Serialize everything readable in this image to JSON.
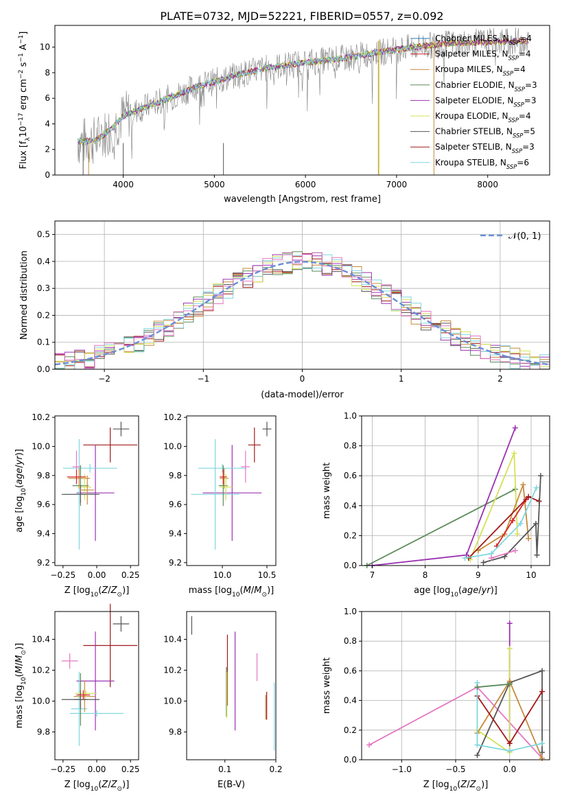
{
  "figure_title": "PLATE=0732, MJD=52221, FIBERID=0557, z=0.092",
  "colors": {
    "Chabrier MILES": "#1f77b4",
    "Salpeter MILES": "#d62728",
    "Kroupa MILES": "#c58a3a",
    "Chabrier ELODIE": "#5a8a5a",
    "Salpeter ELODIE": "#9b30b0",
    "Kroupa ELODIE": "#d4e157",
    "Chabrier STELIB": "#555555",
    "Salpeter STELIB": "#a01818",
    "Kroupa STELIB": "#7fd6e0",
    "Pink": "#e377c2",
    "Normal": "#6a8fd8"
  },
  "chart_data": [
    {
      "id": "spectrum",
      "type": "line",
      "xlabel": "wavelength [Angstrom, rest frame]",
      "ylabel": "Flux [f_λ10^-17 erg cm^-2 s^-1 A^-1]",
      "xlim": [
        3250,
        8680
      ],
      "ylim": [
        0,
        11.7
      ],
      "xticks": [
        4000,
        5000,
        6000,
        7000,
        8000
      ],
      "yticks": [
        0,
        2,
        4,
        6,
        8,
        10
      ],
      "grid": false,
      "legend_position": "right",
      "legend": [
        {
          "name": "Chabrier MILES",
          "nssp": "4"
        },
        {
          "name": "Salpeter MILES",
          "nssp": "4"
        },
        {
          "name": "Kroupa MILES",
          "nssp": "4"
        },
        {
          "name": "Chabrier ELODIE",
          "nssp": "3"
        },
        {
          "name": "Salpeter ELODIE",
          "nssp": "3"
        },
        {
          "name": "Kroupa ELODIE",
          "nssp": "4"
        },
        {
          "name": "Chabrier STELIB",
          "nssp": "5"
        },
        {
          "name": "Salpeter STELIB",
          "nssp": "3"
        },
        {
          "name": "Kroupa STELIB",
          "nssp": "6"
        }
      ],
      "continuum": [
        [
          3500,
          2.6
        ],
        [
          3700,
          2.7
        ],
        [
          3900,
          3.8
        ],
        [
          4000,
          4.6
        ],
        [
          4200,
          5.2
        ],
        [
          4500,
          6.0
        ],
        [
          4800,
          6.9
        ],
        [
          5000,
          7.3
        ],
        [
          5300,
          7.9
        ],
        [
          5600,
          8.4
        ],
        [
          6000,
          8.8
        ],
        [
          6400,
          9.1
        ],
        [
          6800,
          9.6
        ],
        [
          7200,
          10.0
        ],
        [
          7600,
          10.3
        ],
        [
          8000,
          10.4
        ],
        [
          8450,
          10.5
        ]
      ],
      "data_color": "#808080"
    },
    {
      "id": "residuals",
      "type": "line",
      "xlabel": "(data-model)/error",
      "ylabel": "Normed distribution",
      "xlim": [
        -2.5,
        2.5
      ],
      "ylim": [
        0,
        0.55
      ],
      "xticks": [
        -2,
        -1,
        0,
        1,
        2
      ],
      "yticks": [
        0.0,
        0.1,
        0.2,
        0.3,
        0.4,
        0.5
      ],
      "grid": true,
      "legend_position": "top-right",
      "legend_label": "𝒩(0, 1)",
      "bin_width": 0.1
    },
    {
      "id": "age-z",
      "type": "scatter",
      "xlabel": "Z [log10(Z/Z⊙)]",
      "ylabel": "age  [log10(age/yr)]",
      "xlim": [
        -0.31,
        0.31
      ],
      "ylim": [
        9.18,
        10.21
      ],
      "xticks": [
        -0.25,
        0.0,
        0.25
      ],
      "xtick_labels": [
        "−0.25",
        "0.00",
        "0.25"
      ],
      "yticks": [
        9.2,
        9.4,
        9.6,
        9.8,
        10.0,
        10.2
      ],
      "grid": false,
      "points": [
        {
          "c": "Salpeter STELIB",
          "x": 0.1,
          "y": 10.01,
          "xe": 0.2,
          "ye": 0.12
        },
        {
          "c": "Chabrier STELIB",
          "x": 0.18,
          "y": 10.12,
          "xe": 0.06,
          "ye": 0.05
        },
        {
          "c": "Salpeter ELODIE",
          "x": -0.01,
          "y": 9.68,
          "xe": 0.14,
          "ye": 0.33
        },
        {
          "c": "Kroupa STELIB",
          "x": -0.13,
          "y": 9.67,
          "xe": 0.11,
          "ye": 0.38
        },
        {
          "c": "Kroupa STELIB",
          "x": -0.05,
          "y": 9.85,
          "xe": 0.2,
          "ye": 0.03
        },
        {
          "c": "Pink",
          "x": -0.15,
          "y": 9.86,
          "xe": 0.03,
          "ye": 0.11
        },
        {
          "c": "Chabrier ELODIE",
          "x": -0.12,
          "y": 9.73,
          "xe": 0.06,
          "ye": 0.14
        },
        {
          "c": "Kroupa MILES",
          "x": -0.13,
          "y": 9.78,
          "xe": 0.08,
          "ye": 0.07
        },
        {
          "c": "Kroupa ELODIE",
          "x": -0.09,
          "y": 9.72,
          "xe": 0.05,
          "ye": 0.09
        },
        {
          "c": "Chabrier STELIB",
          "x": -0.12,
          "y": 9.67,
          "xe": 0.14,
          "ye": 0.06
        },
        {
          "c": "Salpeter MILES",
          "x": -0.15,
          "y": 9.79,
          "xe": 0.07,
          "ye": 0.05
        },
        {
          "c": "Kroupa MILES",
          "x": -0.07,
          "y": 9.7,
          "xe": 0.05,
          "ye": 0.1
        }
      ]
    },
    {
      "id": "age-mass",
      "type": "scatter",
      "xlabel": "mass [log10(M/M⊙)]",
      "ylabel": "",
      "xlim": [
        9.6,
        10.6
      ],
      "ylim": [
        9.18,
        10.21
      ],
      "xticks": [
        10.0,
        10.5
      ],
      "xtick_labels": [
        "10.0",
        "10.5"
      ],
      "yticks": [
        9.2,
        9.4,
        9.6,
        9.8,
        10.0,
        10.2
      ],
      "grid": false,
      "points": [
        {
          "c": "Salpeter STELIB",
          "x": 10.36,
          "y": 10.01,
          "xe": 0.07,
          "ye": 0.12
        },
        {
          "c": "Chabrier STELIB",
          "x": 10.5,
          "y": 10.12,
          "xe": 0.05,
          "ye": 0.05
        },
        {
          "c": "Salpeter ELODIE",
          "x": 10.11,
          "y": 9.68,
          "xe": 0.33,
          "ye": 0.33
        },
        {
          "c": "Kroupa STELIB",
          "x": 9.92,
          "y": 9.67,
          "xe": 0.27,
          "ye": 0.38
        },
        {
          "c": "Kroupa STELIB",
          "x": 10.0,
          "y": 9.85,
          "xe": 0.27,
          "ye": 0.03
        },
        {
          "c": "Pink",
          "x": 10.26,
          "y": 9.86,
          "xe": 0.05,
          "ye": 0.11
        },
        {
          "c": "Chabrier ELODIE",
          "x": 10.01,
          "y": 9.73,
          "xe": 0.05,
          "ye": 0.14
        },
        {
          "c": "Kroupa MILES",
          "x": 10.02,
          "y": 9.78,
          "xe": 0.05,
          "ye": 0.07
        },
        {
          "c": "Kroupa ELODIE",
          "x": 10.04,
          "y": 9.72,
          "xe": 0.07,
          "ye": 0.09
        },
        {
          "c": "Salpeter MILES",
          "x": 10.01,
          "y": 9.79,
          "xe": 0.04,
          "ye": 0.05
        }
      ]
    },
    {
      "id": "weight-age",
      "type": "line",
      "xlabel": "age  [log10(age/yr)]",
      "ylabel": "mass weight",
      "xlim": [
        6.8,
        10.35
      ],
      "ylim": [
        0,
        1
      ],
      "xticks": [
        7,
        8,
        9,
        10
      ],
      "yticks": [
        0.0,
        0.2,
        0.4,
        0.6,
        0.8,
        1.0
      ],
      "grid": true,
      "series": [
        {
          "c": "Chabrier ELODIE",
          "x": [
            6.9,
            9.7
          ],
          "y": [
            0.0,
            0.51
          ]
        },
        {
          "c": "Salpeter ELODIE",
          "x": [
            7.0,
            8.78,
            9.7
          ],
          "y": [
            0.0,
            0.07,
            0.92
          ]
        },
        {
          "c": "Kroupa ELODIE",
          "x": [
            8.85,
            9.68,
            9.74
          ],
          "y": [
            0.04,
            0.75,
            0.21
          ]
        },
        {
          "c": "Kroupa MILES",
          "x": [
            9.0,
            9.5,
            9.85,
            9.95
          ],
          "y": [
            0.1,
            0.21,
            0.54,
            0.18
          ]
        },
        {
          "c": "Salpeter MILES",
          "x": [
            9.35,
            9.65,
            9.9
          ],
          "y": [
            0.13,
            0.3,
            0.44
          ]
        },
        {
          "c": "Salpeter STELIB",
          "x": [
            8.82,
            9.95,
            10.15
          ],
          "y": [
            0.05,
            0.46,
            0.43
          ]
        },
        {
          "c": "Chabrier STELIB",
          "x": [
            9.1,
            9.5,
            10.09,
            10.11,
            10.18
          ],
          "y": [
            0.02,
            0.06,
            0.28,
            0.07,
            0.6
          ]
        },
        {
          "c": "Kroupa STELIB",
          "x": [
            8.75,
            9.25,
            9.8,
            10.1
          ],
          "y": [
            0.05,
            0.08,
            0.28,
            0.52
          ]
        },
        {
          "c": "Pink",
          "x": [
            9.25,
            9.7
          ],
          "y": [
            0.05,
            0.1
          ]
        }
      ]
    },
    {
      "id": "mass-z",
      "type": "scatter",
      "xlabel": "Z [log10(Z/Z⊙)]",
      "ylabel": "mass [log10(M/M⊙)]",
      "xlim": [
        -0.31,
        0.31
      ],
      "ylim": [
        9.62,
        10.58
      ],
      "xticks": [
        -0.25,
        0.0,
        0.25
      ],
      "xtick_labels": [
        "−0.25",
        "0.00",
        "0.25"
      ],
      "yticks": [
        9.8,
        10.0,
        10.2,
        10.4
      ],
      "grid": false,
      "points": [
        {
          "c": "Salpeter STELIB",
          "x": 0.1,
          "y": 10.36,
          "xe": 0.2,
          "ye": 0.27
        },
        {
          "c": "Chabrier STELIB",
          "x": 0.18,
          "y": 10.5,
          "xe": 0.06,
          "ye": 0.05
        },
        {
          "c": "Salpeter ELODIE",
          "x": -0.01,
          "y": 10.13,
          "xe": 0.14,
          "ye": 0.32
        },
        {
          "c": "Pink",
          "x": -0.2,
          "y": 10.26,
          "xe": 0.06,
          "ye": 0.05
        },
        {
          "c": "Kroupa STELIB",
          "x": -0.13,
          "y": 9.95,
          "xe": 0.06,
          "ye": 0.24
        },
        {
          "c": "Kroupa STELIB",
          "x": 0.0,
          "y": 9.92,
          "xe": 0.2,
          "ye": 0.02
        },
        {
          "c": "Chabrier ELODIE",
          "x": -0.12,
          "y": 10.01,
          "xe": 0.05,
          "ye": 0.17
        },
        {
          "c": "Kroupa MILES",
          "x": -0.09,
          "y": 10.03,
          "xe": 0.08,
          "ye": 0.1
        },
        {
          "c": "Kroupa ELODIE",
          "x": -0.08,
          "y": 10.05,
          "xe": 0.08,
          "ye": 0.02
        },
        {
          "c": "Chabrier STELIB",
          "x": -0.12,
          "y": 10.01,
          "xe": 0.14,
          "ye": 0.06
        },
        {
          "c": "Salpeter MILES",
          "x": -0.1,
          "y": 10.04,
          "xe": 0.05,
          "ye": 0.03
        }
      ]
    },
    {
      "id": "mass-ebv",
      "type": "scatter",
      "xlabel": "E(B-V)",
      "ylabel": "",
      "xlim": [
        0.025,
        0.2
      ],
      "ylim": [
        9.62,
        10.58
      ],
      "xticks": [
        0.1,
        0.2
      ],
      "xtick_labels": [
        "0.1",
        "0.2"
      ],
      "yticks": [
        9.8,
        10.0,
        10.2,
        10.4
      ],
      "grid": false,
      "points": [
        {
          "c": "Chabrier STELIB",
          "x": 0.035,
          "y": 10.49,
          "xe": 0,
          "ye": 0.06
        },
        {
          "c": "Salpeter STELIB",
          "x": 0.105,
          "y": 10.2,
          "xe": 0,
          "ye": 0.23
        },
        {
          "c": "Chabrier ELODIE",
          "x": 0.103,
          "y": 10.06,
          "xe": 0,
          "ye": 0.16
        },
        {
          "c": "Kroupa ELODIE",
          "x": 0.104,
          "y": 10.04,
          "xe": 0,
          "ye": 0.15
        },
        {
          "c": "Salpeter ELODIE",
          "x": 0.12,
          "y": 10.13,
          "xe": 0,
          "ye": 0.32
        },
        {
          "c": "Pink",
          "x": 0.163,
          "y": 10.22,
          "xe": 0,
          "ye": 0.09
        },
        {
          "c": "Kroupa MILES",
          "x": 0.18,
          "y": 9.96,
          "xe": 0,
          "ye": 0.08
        },
        {
          "c": "Salpeter STELIB",
          "x": 0.182,
          "y": 9.97,
          "xe": 0,
          "ye": 0.09
        },
        {
          "c": "Kroupa STELIB",
          "x": 0.197,
          "y": 9.9,
          "xe": 0,
          "ye": 0.22
        }
      ]
    },
    {
      "id": "weight-z",
      "type": "line",
      "xlabel": "Z [log10(Z/Z⊙)]",
      "ylabel": "mass weight",
      "xlim": [
        -1.37,
        0.37
      ],
      "ylim": [
        0,
        1
      ],
      "xticks": [
        -1.0,
        -0.5,
        0.0
      ],
      "xtick_labels": [
        "−1.0",
        "−0.5",
        "0.0"
      ],
      "yticks": [
        0.0,
        0.2,
        0.4,
        0.6,
        0.8,
        1.0
      ],
      "grid": true,
      "series": [
        {
          "c": "Pink",
          "x": [
            -1.3,
            -0.3,
            0.3
          ],
          "y": [
            0.1,
            0.49,
            0.01
          ]
        },
        {
          "c": "Salpeter ELODIE",
          "x": [
            0.0,
            0.0
          ],
          "y": [
            0.92,
            0.06
          ]
        },
        {
          "c": "Kroupa ELODIE",
          "x": [
            0.0,
            0.0,
            -0.3
          ],
          "y": [
            0.75,
            0.05,
            0.2
          ]
        },
        {
          "c": "Chabrier STELIB",
          "x": [
            -0.3,
            0.0,
            0.3,
            0.3
          ],
          "y": [
            0.03,
            0.52,
            0.6,
            0.05
          ]
        },
        {
          "c": "Kroupa MILES",
          "x": [
            -0.3,
            0.0,
            0.3
          ],
          "y": [
            0.18,
            0.53,
            0.01
          ]
        },
        {
          "c": "Salpeter STELIB",
          "x": [
            -0.3,
            0.0,
            0.3
          ],
          "y": [
            0.43,
            0.11,
            0.46
          ]
        },
        {
          "c": "Kroupa STELIB",
          "x": [
            -0.3,
            -0.3,
            0.0,
            0.3
          ],
          "y": [
            0.52,
            0.1,
            0.06,
            0.11
          ]
        },
        {
          "c": "Chabrier ELODIE",
          "x": [
            -0.3,
            0.0
          ],
          "y": [
            0.49,
            0.51
          ]
        }
      ]
    }
  ]
}
